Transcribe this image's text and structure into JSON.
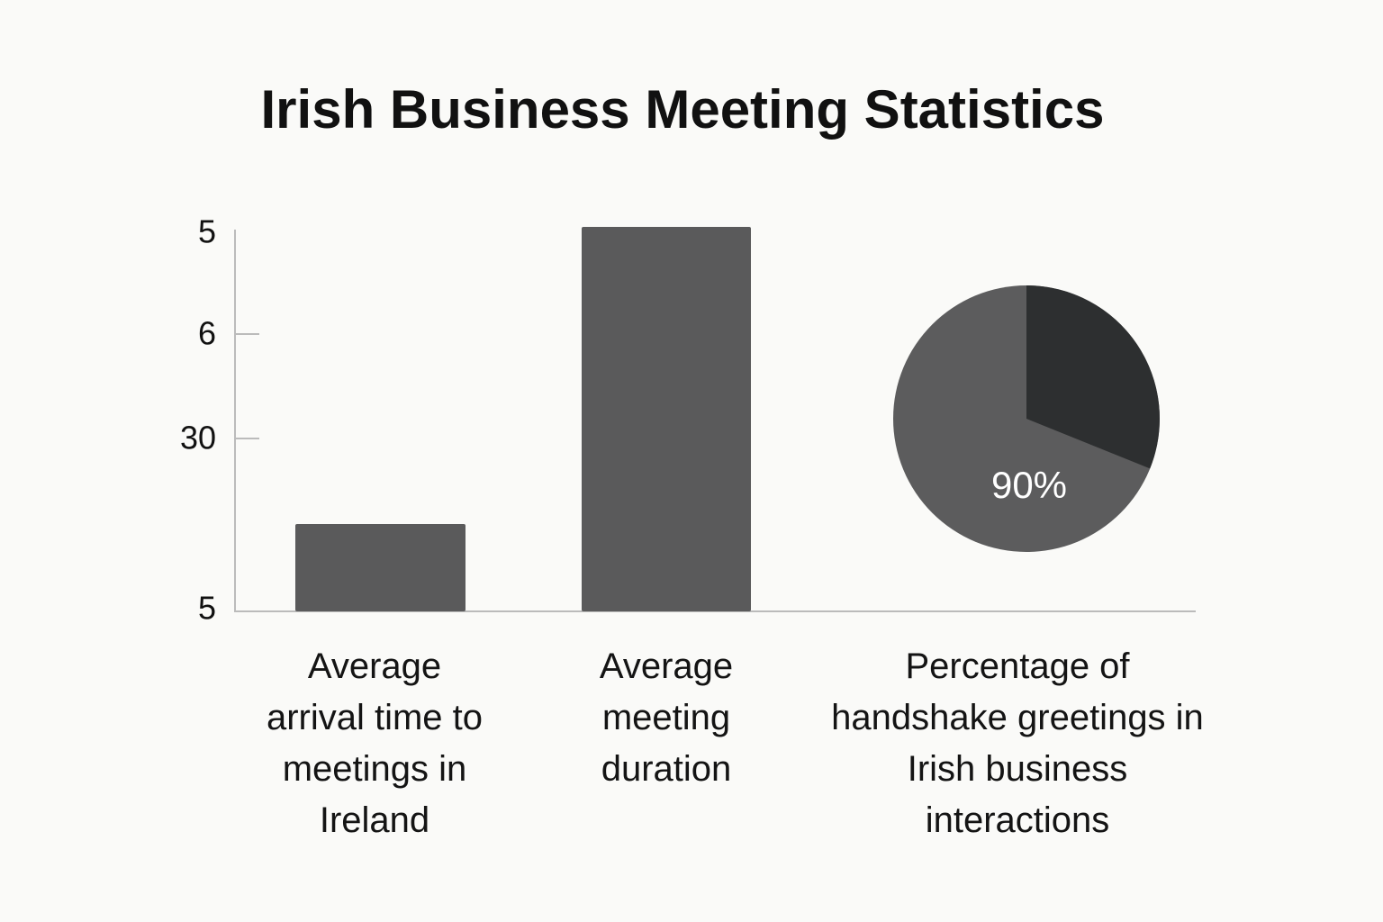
{
  "title": "Irish Business Meeting Statistics",
  "axis_labels": [
    "5",
    "6",
    "30",
    "5"
  ],
  "categories": [
    "Average arrival time to meetings in Ireland",
    "Average meeting duration",
    "Percentage of handshake greetings in Irish business interactions"
  ],
  "pie_label": "90%"
}
